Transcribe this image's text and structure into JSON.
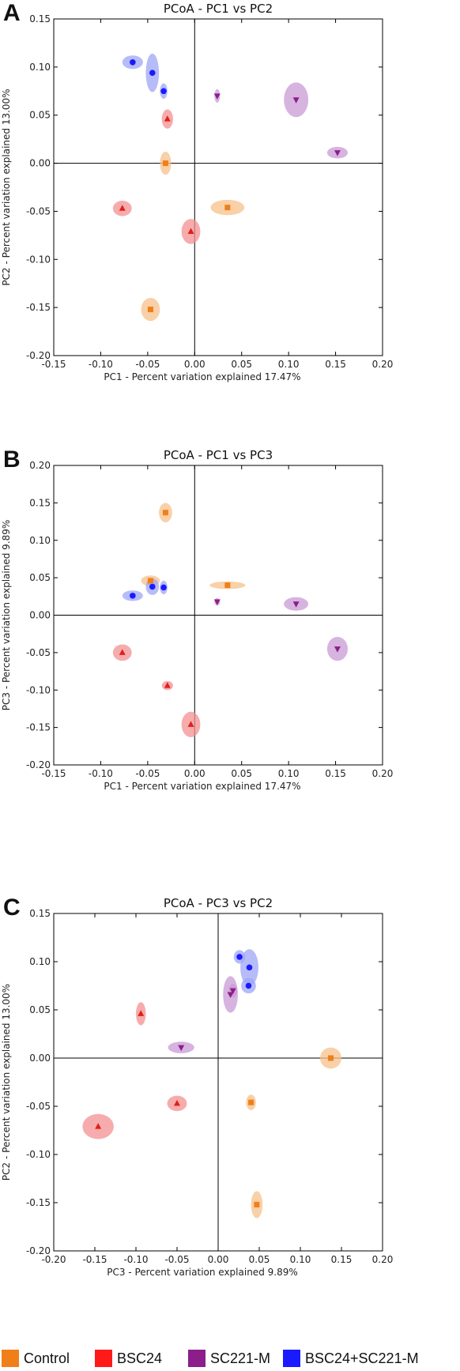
{
  "panels": [
    {
      "letter": "A",
      "title": "PCoA - PC1 vs PC2",
      "xlabel": "PC1 - Percent variation explained 17.47%",
      "ylabel": "PC2 - Percent variation explained 13.00%"
    },
    {
      "letter": "B",
      "title": "PCoA - PC1 vs PC3",
      "xlabel": "PC1 - Percent variation explained 17.47%",
      "ylabel": "PC3 - Percent variation explained 9.89%"
    },
    {
      "letter": "C",
      "title": "PCoA - PC3 vs PC2",
      "xlabel": "PC3 - Percent variation explained 9.89%",
      "ylabel": "PC2 - Percent variation explained 13.00%"
    }
  ],
  "legend": [
    {
      "label": "Control",
      "color": "#f07f1a"
    },
    {
      "label": "BSC24",
      "color": "#ff1a1a"
    },
    {
      "label": "SC221-M",
      "color": "#8b1e8b"
    },
    {
      "label": "BSC24+SC221-M",
      "color": "#1a1aff"
    }
  ],
  "chart_data": [
    {
      "type": "scatter",
      "title": "PCoA - PC1 vs PC2",
      "xlabel": "PC1 - Percent variation explained 17.47%",
      "ylabel": "PC2 - Percent variation explained 13.00%",
      "xlim": [
        -0.15,
        0.2
      ],
      "ylim": [
        -0.2,
        0.15
      ],
      "xticks": [
        "-0.15",
        "-0.10",
        "-0.05",
        "0.00",
        "0.05",
        "0.10",
        "0.15",
        "0.20"
      ],
      "yticks": [
        "-0.20",
        "-0.15",
        "-0.10",
        "-0.05",
        "0.00",
        "0.05",
        "0.10",
        "0.15"
      ],
      "grid": false,
      "series": [
        {
          "name": "Control",
          "marker": "square",
          "color": "#f07f1a",
          "fill": "#f7c08a",
          "points": [
            {
              "x": -0.031,
              "y": 0.0,
              "rx": 0.006,
              "ry": 0.012
            },
            {
              "x": 0.035,
              "y": -0.046,
              "rx": 0.018,
              "ry": 0.008
            },
            {
              "x": -0.047,
              "y": -0.152,
              "rx": 0.01,
              "ry": 0.012
            }
          ]
        },
        {
          "name": "BSC24",
          "marker": "triangle-up",
          "color": "#e0201a",
          "fill": "#f39090",
          "points": [
            {
              "x": -0.029,
              "y": 0.046,
              "rx": 0.006,
              "ry": 0.01
            },
            {
              "x": -0.077,
              "y": -0.047,
              "rx": 0.01,
              "ry": 0.008
            },
            {
              "x": -0.004,
              "y": -0.071,
              "rx": 0.01,
              "ry": 0.013
            }
          ]
        },
        {
          "name": "SC221-M",
          "marker": "triangle-down",
          "color": "#8b1e8b",
          "fill": "#c99ad6",
          "points": [
            {
              "x": 0.024,
              "y": 0.07,
              "rx": 0.003,
              "ry": 0.007
            },
            {
              "x": 0.108,
              "y": 0.066,
              "rx": 0.013,
              "ry": 0.018
            },
            {
              "x": 0.152,
              "y": 0.011,
              "rx": 0.011,
              "ry": 0.006
            }
          ]
        },
        {
          "name": "BSC24+SC221-M",
          "marker": "circle",
          "color": "#1a1aff",
          "fill": "#9ea6f5",
          "points": [
            {
              "x": -0.066,
              "y": 0.105,
              "rx": 0.011,
              "ry": 0.007
            },
            {
              "x": -0.045,
              "y": 0.094,
              "rx": 0.007,
              "ry": 0.02
            },
            {
              "x": -0.033,
              "y": 0.075,
              "rx": 0.004,
              "ry": 0.008
            }
          ]
        }
      ]
    },
    {
      "type": "scatter",
      "title": "PCoA - PC1 vs PC3",
      "xlabel": "PC1 - Percent variation explained 17.47%",
      "ylabel": "PC3 - Percent variation explained 9.89%",
      "xlim": [
        -0.15,
        0.2
      ],
      "ylim": [
        -0.2,
        0.2
      ],
      "xticks": [
        "-0.15",
        "-0.10",
        "-0.05",
        "0.00",
        "0.05",
        "0.10",
        "0.15",
        "0.20"
      ],
      "yticks": [
        "-0.20",
        "-0.15",
        "-0.10",
        "-0.05",
        "0.00",
        "0.05",
        "0.10",
        "0.15",
        "0.20"
      ],
      "grid": false,
      "series": [
        {
          "name": "Control",
          "marker": "square",
          "color": "#f07f1a",
          "fill": "#f7c08a",
          "points": [
            {
              "x": -0.031,
              "y": 0.137,
              "rx": 0.007,
              "ry": 0.013
            },
            {
              "x": -0.047,
              "y": 0.046,
              "rx": 0.01,
              "ry": 0.007
            },
            {
              "x": 0.035,
              "y": 0.04,
              "rx": 0.019,
              "ry": 0.005
            }
          ]
        },
        {
          "name": "BSC24",
          "marker": "triangle-up",
          "color": "#e0201a",
          "fill": "#f39090",
          "points": [
            {
              "x": -0.077,
              "y": -0.05,
              "rx": 0.01,
              "ry": 0.011
            },
            {
              "x": -0.029,
              "y": -0.094,
              "rx": 0.006,
              "ry": 0.006
            },
            {
              "x": -0.004,
              "y": -0.146,
              "rx": 0.01,
              "ry": 0.017
            }
          ]
        },
        {
          "name": "SC221-M",
          "marker": "triangle-down",
          "color": "#8b1e8b",
          "fill": "#c99ad6",
          "points": [
            {
              "x": 0.024,
              "y": 0.018,
              "rx": 0.003,
              "ry": 0.005
            },
            {
              "x": 0.108,
              "y": 0.015,
              "rx": 0.013,
              "ry": 0.009
            },
            {
              "x": 0.152,
              "y": -0.045,
              "rx": 0.011,
              "ry": 0.016
            }
          ]
        },
        {
          "name": "BSC24+SC221-M",
          "marker": "circle",
          "color": "#1a1aff",
          "fill": "#9ea6f5",
          "points": [
            {
              "x": -0.066,
              "y": 0.026,
              "rx": 0.011,
              "ry": 0.007
            },
            {
              "x": -0.045,
              "y": 0.038,
              "rx": 0.007,
              "ry": 0.011
            },
            {
              "x": -0.033,
              "y": 0.037,
              "rx": 0.004,
              "ry": 0.009
            }
          ]
        }
      ]
    },
    {
      "type": "scatter",
      "title": "PCoA - PC3 vs PC2",
      "xlabel": "PC3 - Percent variation explained 9.89%",
      "ylabel": "PC2 - Percent variation explained 13.00%",
      "xlim": [
        -0.2,
        0.2
      ],
      "ylim": [
        -0.2,
        0.15
      ],
      "xticks": [
        "-0.20",
        "-0.15",
        "-0.10",
        "-0.05",
        "0.00",
        "0.05",
        "0.10",
        "0.15",
        "0.20"
      ],
      "yticks": [
        "-0.20",
        "-0.15",
        "-0.10",
        "-0.05",
        "0.00",
        "0.05",
        "0.10",
        "0.15"
      ],
      "grid": false,
      "series": [
        {
          "name": "Control",
          "marker": "square",
          "color": "#f07f1a",
          "fill": "#f7c08a",
          "points": [
            {
              "x": 0.137,
              "y": 0.0,
              "rx": 0.013,
              "ry": 0.011
            },
            {
              "x": 0.04,
              "y": -0.046,
              "rx": 0.006,
              "ry": 0.008
            },
            {
              "x": 0.047,
              "y": -0.152,
              "rx": 0.007,
              "ry": 0.014
            }
          ]
        },
        {
          "name": "BSC24",
          "marker": "triangle-up",
          "color": "#e0201a",
          "fill": "#f39090",
          "points": [
            {
              "x": -0.094,
              "y": 0.046,
              "rx": 0.006,
              "ry": 0.012
            },
            {
              "x": -0.05,
              "y": -0.047,
              "rx": 0.012,
              "ry": 0.008
            },
            {
              "x": -0.146,
              "y": -0.071,
              "rx": 0.019,
              "ry": 0.013
            }
          ]
        },
        {
          "name": "SC221-M",
          "marker": "triangle-down",
          "color": "#8b1e8b",
          "fill": "#c99ad6",
          "points": [
            {
              "x": 0.018,
              "y": 0.07,
              "rx": 0.005,
              "ry": 0.007
            },
            {
              "x": 0.015,
              "y": 0.066,
              "rx": 0.009,
              "ry": 0.019
            },
            {
              "x": -0.045,
              "y": 0.011,
              "rx": 0.016,
              "ry": 0.006
            }
          ]
        },
        {
          "name": "BSC24+SC221-M",
          "marker": "circle",
          "color": "#1a1aff",
          "fill": "#9ea6f5",
          "points": [
            {
              "x": 0.026,
              "y": 0.105,
              "rx": 0.007,
              "ry": 0.007
            },
            {
              "x": 0.038,
              "y": 0.094,
              "rx": 0.011,
              "ry": 0.019
            },
            {
              "x": 0.037,
              "y": 0.075,
              "rx": 0.009,
              "ry": 0.008
            }
          ]
        }
      ]
    }
  ]
}
